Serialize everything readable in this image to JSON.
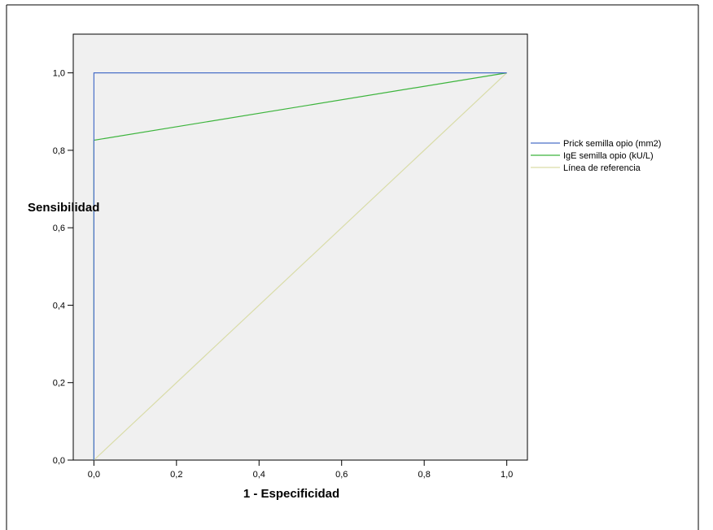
{
  "chart_data": {
    "type": "line",
    "title": "",
    "xlabel": "1 - Especificidad",
    "ylabel": "Sensibilidad",
    "xlim": [
      -0.05,
      1.05
    ],
    "ylim": [
      0.0,
      1.1
    ],
    "xticks": [
      "0,0",
      "0,2",
      "0,4",
      "0,6",
      "0,8",
      "1,0"
    ],
    "yticks": [
      "0,0",
      "0,2",
      "0,4",
      "0,6",
      "0,8",
      "1,0"
    ],
    "xtick_values": [
      0,
      0.2,
      0.4,
      0.6,
      0.8,
      1.0
    ],
    "ytick_values": [
      0,
      0.2,
      0.4,
      0.6,
      0.8,
      1.0
    ],
    "grid": false,
    "legend_position": "right",
    "plot_background": "#f0f0f0",
    "series": [
      {
        "name": "Prick semilla opio (mm2)",
        "color": "#4a6fc8",
        "points": [
          [
            0,
            0
          ],
          [
            0,
            1.0
          ],
          [
            1.0,
            1.0
          ]
        ]
      },
      {
        "name": "IgE semilla opio (kU/L)",
        "color": "#3cb43c",
        "points": [
          [
            0,
            0
          ],
          [
            0,
            0.826
          ],
          [
            1.0,
            1.0
          ]
        ]
      },
      {
        "name": "Línea de referencia",
        "color": "#d9dca8",
        "points": [
          [
            0,
            0
          ],
          [
            1.0,
            1.0
          ]
        ]
      }
    ]
  }
}
